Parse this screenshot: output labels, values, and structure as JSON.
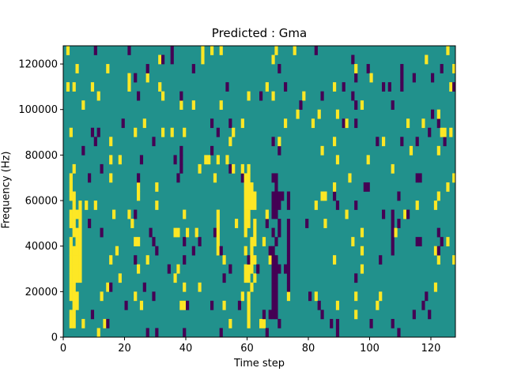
{
  "chart_data": {
    "type": "heatmap",
    "title": "Predicted : Gma",
    "xlabel": "Time step",
    "ylabel": "Frequency (Hz)",
    "xlim": [
      0,
      128
    ],
    "ylim": [
      0,
      128000
    ],
    "xticks": [
      0,
      20,
      40,
      60,
      80,
      100,
      120
    ],
    "yticks": [
      0,
      20000,
      40000,
      60000,
      80000,
      100000,
      120000
    ],
    "colormap": "viridis",
    "colors": {
      "low": "#440154",
      "mid": "#21918c",
      "high": "#fde725"
    },
    "values_description": "binary spectrogram mask over 128 time steps x 32 frequency bins; background mid-level",
    "bright_columns": [
      {
        "time": 2,
        "freq_range": [
          5000,
          70000
        ]
      },
      {
        "time": 3,
        "freq_range": [
          5000,
          60000
        ]
      },
      {
        "time": 4,
        "freq_range": [
          15000,
          58000
        ]
      },
      {
        "time": 5,
        "freq_range": [
          20000,
          58000
        ]
      },
      {
        "time": 50,
        "freq_range": [
          35000,
          52000
        ]
      },
      {
        "time": 59,
        "freq_range": [
          25000,
          70000
        ]
      },
      {
        "time": 60,
        "freq_range": [
          5000,
          72000
        ]
      },
      {
        "time": 61,
        "freq_range": [
          20000,
          70000
        ]
      },
      {
        "time": 62,
        "freq_range": [
          35000,
          60000
        ]
      },
      {
        "time": 97,
        "freq_range": [
          30000,
          45000
        ]
      }
    ],
    "dark_columns": [
      {
        "time": 68,
        "freq_range": [
          0,
          70000
        ]
      },
      {
        "time": 69,
        "freq_range": [
          10000,
          68000
        ]
      },
      {
        "time": 70,
        "freq_range": [
          30000,
          60000
        ]
      },
      {
        "time": 73,
        "freq_range": [
          20000,
          65000
        ]
      },
      {
        "time": 107,
        "freq_range": [
          30000,
          55000
        ]
      }
    ]
  }
}
